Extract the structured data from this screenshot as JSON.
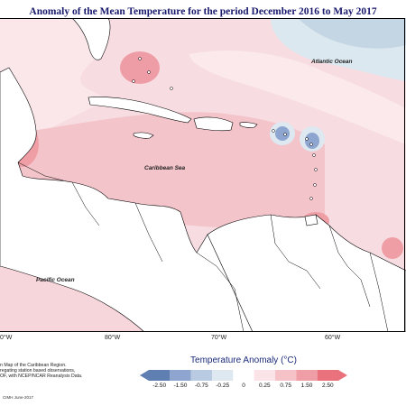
{
  "title": "Anomaly of the Mean Temperature for the period December 2016 to May 2017",
  "map": {
    "labels": {
      "atlantic": "Atlantic Ocean",
      "caribbean": "Caribbean Sea",
      "pacific": "Pacific Ocean"
    },
    "longitude_ticks": [
      "0°W",
      "80°W",
      "70°W",
      "60°W"
    ]
  },
  "legend": {
    "title": "Temperature Anomaly (°C)",
    "ticks": [
      "-2.50",
      "-1.50",
      "-0.75",
      "-0.25",
      "0",
      "0.25",
      "0.75",
      "1.50",
      "2.50"
    ],
    "colors": [
      "#5f7fb3",
      "#8ea6cf",
      "#b8cbe2",
      "#dde8f0",
      "#ffffff",
      "#fbe4e7",
      "#f5c2c8",
      "#ef9ea6",
      "#e9727c"
    ]
  },
  "notes": {
    "line1": "n Map of the Caribbean Region.",
    "line2": "regating station based observations,",
    "line3": "OF, with NCEP/NCAR Reanalysis Data.",
    "credit": "CIMH June-2017"
  }
}
